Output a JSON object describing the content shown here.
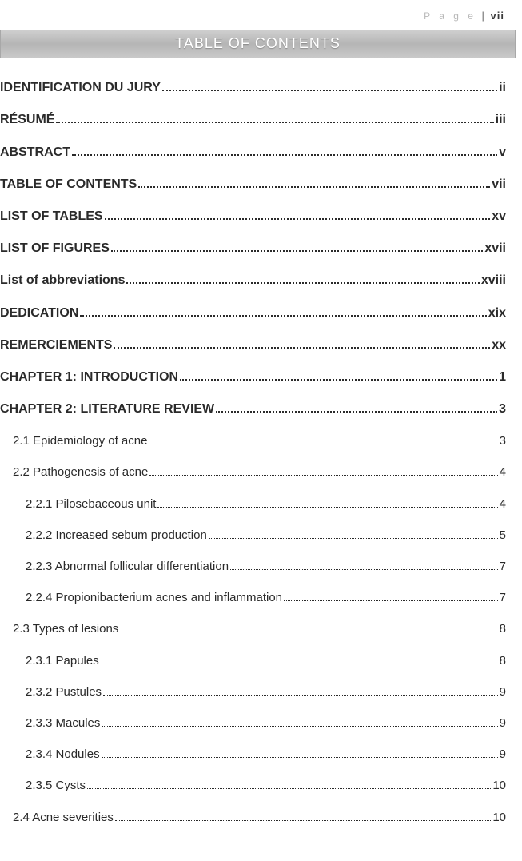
{
  "header": {
    "faded": "P a g e",
    "bar": "|",
    "page_num": "vii"
  },
  "banner": "TABLE OF CONTENTS",
  "colors": {
    "banner_bg": "#c0c0c0",
    "banner_text": "#ffffff",
    "text": "#2a2a2a",
    "dot": "#2a2a2a",
    "faded": "#b8b8b8"
  },
  "fonts": {
    "body_family": "Arial",
    "bold_size_pt": 12,
    "normal_size_pt": 11,
    "banner_size_pt": 14
  },
  "toc": [
    {
      "level": 0,
      "label": "IDENTIFICATION DU JURY",
      "page": "ii"
    },
    {
      "level": 0,
      "label": "RÉSUMÉ",
      "page": "iii"
    },
    {
      "level": 0,
      "label": "ABSTRACT",
      "page": "v"
    },
    {
      "level": 0,
      "label": "TABLE OF CONTENTS",
      "page": "vii"
    },
    {
      "level": 0,
      "label": "LIST OF TABLES",
      "page": "xv"
    },
    {
      "level": 0,
      "label": "LIST OF FIGURES",
      "page": "xvii"
    },
    {
      "level": 0,
      "label": "List of abbreviations",
      "page": "xviii"
    },
    {
      "level": 0,
      "label": "DEDICATION",
      "page": "xix"
    },
    {
      "level": 0,
      "label": "REMERCIEMENTS",
      "page": "xx"
    },
    {
      "level": 0,
      "label": "CHAPTER 1: INTRODUCTION",
      "page": "1"
    },
    {
      "level": 0,
      "label": "CHAPTER 2: LITERATURE REVIEW",
      "page": "3"
    },
    {
      "level": 1,
      "label": "2.1 Epidemiology of acne",
      "page": "3"
    },
    {
      "level": 1,
      "label": "2.2 Pathogenesis of acne",
      "page": "4"
    },
    {
      "level": 2,
      "label": "2.2.1 Pilosebaceous unit",
      "page": "4"
    },
    {
      "level": 2,
      "label": "2.2.2 Increased sebum production",
      "page": "5"
    },
    {
      "level": 2,
      "label": "2.2.3 Abnormal follicular differentiation",
      "page": "7"
    },
    {
      "level": 2,
      "label": "2.2.4 Propionibacterium acnes and inflammation",
      "page": "7"
    },
    {
      "level": 1,
      "label": "2.3 Types of lesions",
      "page": "8"
    },
    {
      "level": 2,
      "label": "2.3.1 Papules",
      "page": "8"
    },
    {
      "level": 2,
      "label": "2.3.2 Pustules",
      "page": "9"
    },
    {
      "level": 2,
      "label": "2.3.3 Macules",
      "page": "9"
    },
    {
      "level": 2,
      "label": "2.3.4 Nodules",
      "page": "9"
    },
    {
      "level": 2,
      "label": "2.3.5 Cysts",
      "page": "10"
    },
    {
      "level": 1,
      "label": "2.4 Acne severities",
      "page": "10"
    }
  ]
}
